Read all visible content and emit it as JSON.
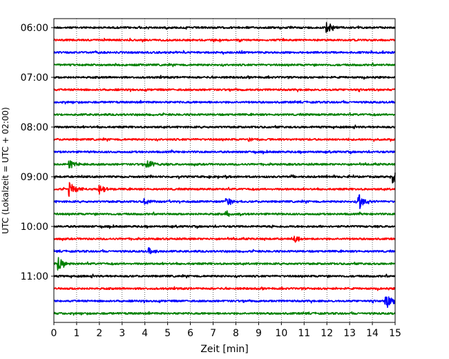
{
  "chart_data": {
    "type": "line",
    "title": "",
    "xlabel": "Zeit  [min]",
    "ylabel": "UTC (Lokalzeit = UTC + 02:00)",
    "xlim": [
      0,
      15
    ],
    "x_ticks": [
      "0",
      "1",
      "2",
      "3",
      "4",
      "5",
      "6",
      "7",
      "8",
      "9",
      "10",
      "11",
      "12",
      "13",
      "14",
      "15"
    ],
    "y_ticks": [
      "06:00",
      "07:00",
      "08:00",
      "09:00",
      "10:00",
      "11:00"
    ],
    "trace_minutes": 15,
    "grid": "vertical-dotted",
    "colors": [
      "#000000",
      "#ff0000",
      "#0000ff",
      "#008000"
    ],
    "traces": [
      {
        "start": "06:00",
        "color": "#000000",
        "events": [
          {
            "x": 12.0,
            "amp": 0.9
          }
        ]
      },
      {
        "start": "06:15",
        "color": "#ff0000",
        "events": []
      },
      {
        "start": "06:30",
        "color": "#0000ff",
        "events": []
      },
      {
        "start": "06:45",
        "color": "#008000",
        "events": []
      },
      {
        "start": "07:00",
        "color": "#000000",
        "events": []
      },
      {
        "start": "07:15",
        "color": "#ff0000",
        "events": []
      },
      {
        "start": "07:30",
        "color": "#0000ff",
        "events": []
      },
      {
        "start": "07:45",
        "color": "#008000",
        "events": []
      },
      {
        "start": "08:00",
        "color": "#000000",
        "events": []
      },
      {
        "start": "08:15",
        "color": "#ff0000",
        "events": [
          {
            "x": 8.6,
            "amp": 0.4
          }
        ]
      },
      {
        "start": "08:30",
        "color": "#0000ff",
        "events": []
      },
      {
        "start": "08:45",
        "color": "#008000",
        "events": [
          {
            "x": 0.7,
            "amp": 0.8
          },
          {
            "x": 4.1,
            "amp": 0.9
          }
        ]
      },
      {
        "start": "09:00",
        "color": "#000000",
        "events": [
          {
            "x": 14.9,
            "amp": 1.0
          }
        ]
      },
      {
        "start": "09:15",
        "color": "#ff0000",
        "events": [
          {
            "x": 0.7,
            "amp": 1.2
          },
          {
            "x": 2.0,
            "amp": 0.7
          }
        ]
      },
      {
        "start": "09:30",
        "color": "#0000ff",
        "events": [
          {
            "x": 4.0,
            "amp": 0.5
          },
          {
            "x": 7.6,
            "amp": 0.7
          },
          {
            "x": 13.4,
            "amp": 1.4
          }
        ]
      },
      {
        "start": "09:45",
        "color": "#008000",
        "events": [
          {
            "x": 7.6,
            "amp": 0.5
          }
        ]
      },
      {
        "start": "10:00",
        "color": "#000000",
        "events": []
      },
      {
        "start": "10:15",
        "color": "#ff0000",
        "events": [
          {
            "x": 10.6,
            "amp": 0.5
          }
        ]
      },
      {
        "start": "10:30",
        "color": "#0000ff",
        "events": [
          {
            "x": 4.2,
            "amp": 0.5
          }
        ]
      },
      {
        "start": "10:45",
        "color": "#008000",
        "events": [
          {
            "x": 0.2,
            "amp": 1.2
          }
        ]
      },
      {
        "start": "11:00",
        "color": "#000000",
        "events": []
      },
      {
        "start": "11:15",
        "color": "#ff0000",
        "events": []
      },
      {
        "start": "11:30",
        "color": "#0000ff",
        "events": [
          {
            "x": 14.6,
            "amp": 1.3
          }
        ]
      },
      {
        "start": "11:45",
        "color": "#008000",
        "events": []
      }
    ]
  }
}
